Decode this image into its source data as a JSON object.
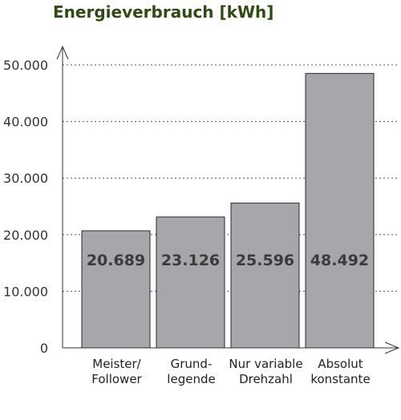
{
  "chart_data": {
    "type": "bar",
    "title": "Energieverbrauch [kWh]",
    "xlabel": "",
    "ylabel": "",
    "categories": [
      [
        "Meister/",
        "Follower"
      ],
      [
        "Grund-",
        "legende"
      ],
      [
        "Nur variable",
        "Drehzahl"
      ],
      [
        "Absolut",
        "konstante"
      ]
    ],
    "values": [
      20689,
      23126,
      25596,
      48492
    ],
    "value_labels": [
      "20.689",
      "23.126",
      "25.596",
      "48.492"
    ],
    "ylim": [
      0,
      50000
    ],
    "yticks": [
      0,
      10000,
      20000,
      30000,
      40000,
      50000
    ],
    "ytick_labels": [
      "0",
      "10.000",
      "20.000",
      "30.000",
      "40.000",
      "50.000"
    ],
    "grid": true,
    "legend": "none",
    "colors": {
      "bar_fill": "#a7a6ab",
      "bar_stroke": "#2a2a2a",
      "grid": "#555555",
      "title": "#2f4a12",
      "value_label": "#3b3b3b"
    }
  }
}
